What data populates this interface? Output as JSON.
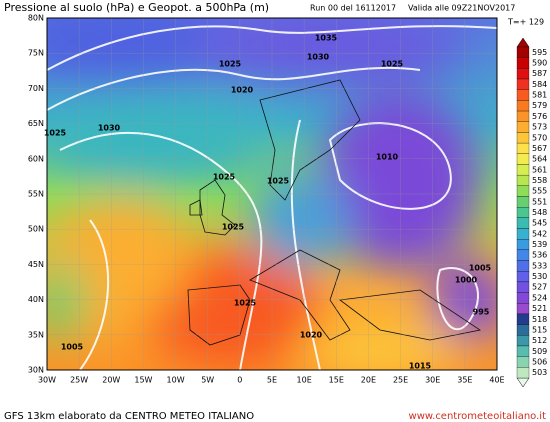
{
  "header": {
    "title": "Pressione al suolo (hPa) e Geopot. a 500hPa (m)",
    "run": "Run 00 del 16112017",
    "valid": "Valida alle 09Z21NOV2017",
    "step": "T=+ 129"
  },
  "map": {
    "lat_labels": [
      "80N",
      "75N",
      "70N",
      "65N",
      "60N",
      "55N",
      "50N",
      "45N",
      "40N",
      "35N",
      "30N"
    ],
    "lon_labels": [
      "30W",
      "25W",
      "20W",
      "15W",
      "10W",
      "5W",
      "0",
      "5E",
      "10E",
      "15E",
      "20E",
      "25E",
      "30E",
      "35E",
      "40E"
    ],
    "isobar_labels": [
      "1035",
      "1030",
      "1025",
      "1025",
      "1020",
      "1025",
      "1030",
      "1010",
      "1025",
      "1025",
      "1025",
      "1005",
      "1000",
      "995",
      "1025",
      "1020",
      "1005",
      "1015"
    ]
  },
  "colorbar": {
    "labels": [
      595,
      590,
      587,
      584,
      581,
      579,
      576,
      573,
      570,
      567,
      564,
      561,
      558,
      555,
      551,
      548,
      545,
      542,
      539,
      536,
      533,
      530,
      527,
      524,
      521,
      518,
      515,
      512,
      509,
      506,
      503
    ],
    "colors": [
      "#a30000",
      "#c80000",
      "#e01010",
      "#f03020",
      "#f85a20",
      "#fa7a20",
      "#fb9428",
      "#fcae30",
      "#fdc63a",
      "#fde04a",
      "#f2ec50",
      "#d8ee50",
      "#b8e650",
      "#8edc58",
      "#66d070",
      "#4cc690",
      "#3cbcb0",
      "#38b0d0",
      "#3a9ce0",
      "#4486e8",
      "#5070ea",
      "#6060e8",
      "#7250e0",
      "#8448d8",
      "#9a4acc",
      "#243c8c",
      "#2a6c9c",
      "#3a98a8",
      "#58bcb0",
      "#88d4b0",
      "#c0e8c0"
    ]
  },
  "footer": {
    "left": "GFS 13km elaborato da CENTRO METEO ITALIANO",
    "right": "www.centrometeoitaliano.it"
  }
}
